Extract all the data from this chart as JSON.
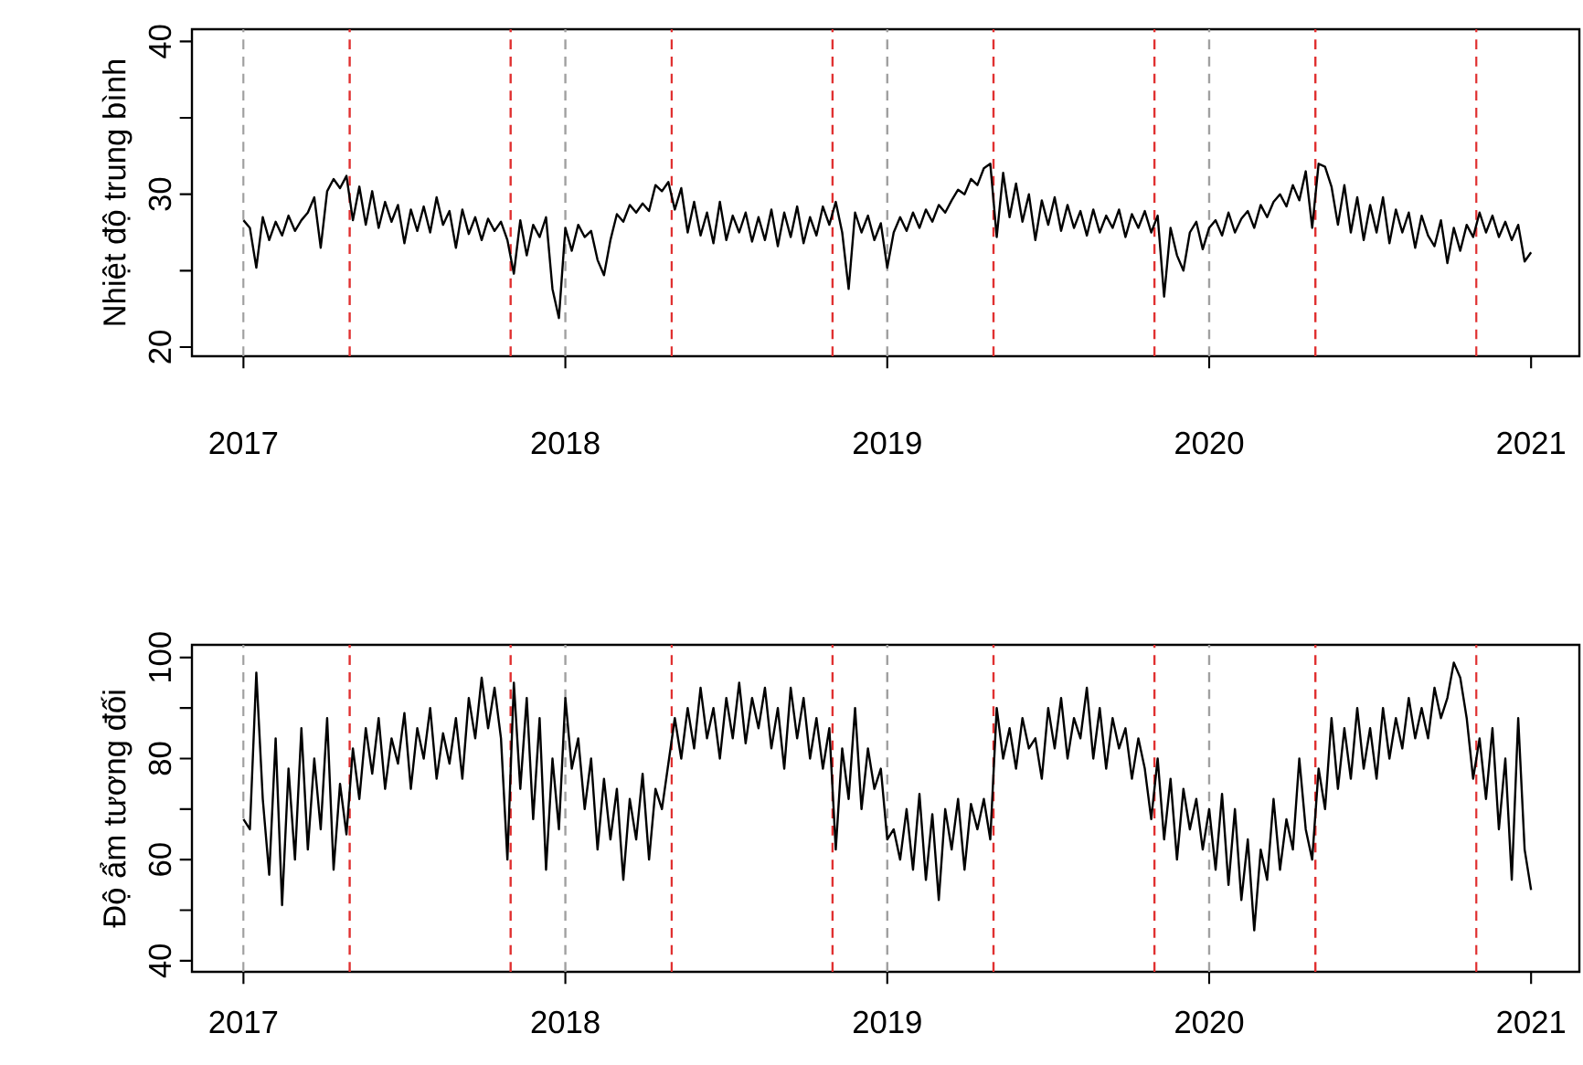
{
  "chart_data": [
    {
      "type": "line",
      "ylabel": "Nhiệt độ trung bình",
      "xlim": [
        2016.84,
        2021.15
      ],
      "ylim": [
        19.4,
        40.8
      ],
      "xticks": [
        2017,
        2018,
        2019,
        2020,
        2021
      ],
      "yticks": [
        20,
        {
          "value": 25,
          "label": null
        },
        30,
        {
          "value": 35,
          "label": null
        },
        40
      ],
      "grid": false,
      "legend": false,
      "marker": "none",
      "line_style": "solid",
      "ref_lines": [
        {
          "axis": "x",
          "value": 2017,
          "color": "#a0a0a0",
          "line_style": "dashed"
        },
        {
          "axis": "x",
          "value": 2018,
          "color": "#a0a0a0",
          "line_style": "dashed"
        },
        {
          "axis": "x",
          "value": 2019,
          "color": "#a0a0a0",
          "line_style": "dashed"
        },
        {
          "axis": "x",
          "value": 2020,
          "color": "#a0a0a0",
          "line_style": "dashed"
        },
        {
          "axis": "x",
          "value": 2017.33,
          "color": "#e03030",
          "line_style": "dashed"
        },
        {
          "axis": "x",
          "value": 2017.83,
          "color": "#e03030",
          "line_style": "dashed"
        },
        {
          "axis": "x",
          "value": 2018.33,
          "color": "#e03030",
          "line_style": "dashed"
        },
        {
          "axis": "x",
          "value": 2018.83,
          "color": "#e03030",
          "line_style": "dashed"
        },
        {
          "axis": "x",
          "value": 2019.33,
          "color": "#e03030",
          "line_style": "dashed"
        },
        {
          "axis": "x",
          "value": 2019.83,
          "color": "#e03030",
          "line_style": "dashed"
        },
        {
          "axis": "x",
          "value": 2020.33,
          "color": "#e03030",
          "line_style": "dashed"
        },
        {
          "axis": "x",
          "value": 2020.83,
          "color": "#e03030",
          "line_style": "dashed"
        }
      ],
      "series": [
        {
          "color": "#000000",
          "x": [
            2017.0,
            2017.02,
            2017.04,
            2017.06,
            2017.08,
            2017.1,
            2017.12,
            2017.14,
            2017.16,
            2017.18,
            2017.2,
            2017.22,
            2017.24,
            2017.26,
            2017.28,
            2017.3,
            2017.32,
            2017.34,
            2017.36,
            2017.38,
            2017.4,
            2017.42,
            2017.44,
            2017.46,
            2017.48,
            2017.5,
            2017.52,
            2017.54,
            2017.56,
            2017.58,
            2017.6,
            2017.62,
            2017.64,
            2017.66,
            2017.68,
            2017.7,
            2017.72,
            2017.74,
            2017.76,
            2017.78,
            2017.8,
            2017.82,
            2017.84,
            2017.86,
            2017.88,
            2017.9,
            2017.92,
            2017.94,
            2017.96,
            2017.98,
            2018.0,
            2018.02,
            2018.04,
            2018.06,
            2018.08,
            2018.1,
            2018.12,
            2018.14,
            2018.16,
            2018.18,
            2018.2,
            2018.22,
            2018.24,
            2018.26,
            2018.28,
            2018.3,
            2018.32,
            2018.34,
            2018.36,
            2018.38,
            2018.4,
            2018.42,
            2018.44,
            2018.46,
            2018.48,
            2018.5,
            2018.52,
            2018.54,
            2018.56,
            2018.58,
            2018.6,
            2018.62,
            2018.64,
            2018.66,
            2018.68,
            2018.7,
            2018.72,
            2018.74,
            2018.76,
            2018.78,
            2018.8,
            2018.82,
            2018.84,
            2018.86,
            2018.88,
            2018.9,
            2018.92,
            2018.94,
            2018.96,
            2018.98,
            2019.0,
            2019.02,
            2019.04,
            2019.06,
            2019.08,
            2019.1,
            2019.12,
            2019.14,
            2019.16,
            2019.18,
            2019.2,
            2019.22,
            2019.24,
            2019.26,
            2019.28,
            2019.3,
            2019.32,
            2019.34,
            2019.36,
            2019.38,
            2019.4,
            2019.42,
            2019.44,
            2019.46,
            2019.48,
            2019.5,
            2019.52,
            2019.54,
            2019.56,
            2019.58,
            2019.6,
            2019.62,
            2019.64,
            2019.66,
            2019.68,
            2019.7,
            2019.72,
            2019.74,
            2019.76,
            2019.78,
            2019.8,
            2019.82,
            2019.84,
            2019.86,
            2019.88,
            2019.9,
            2019.92,
            2019.94,
            2019.96,
            2019.98,
            2020.0,
            2020.02,
            2020.04,
            2020.06,
            2020.08,
            2020.1,
            2020.12,
            2020.14,
            2020.16,
            2020.18,
            2020.2,
            2020.22,
            2020.24,
            2020.26,
            2020.28,
            2020.3,
            2020.32,
            2020.34,
            2020.36,
            2020.38,
            2020.4,
            2020.42,
            2020.44,
            2020.46,
            2020.48,
            2020.5,
            2020.52,
            2020.54,
            2020.56,
            2020.58,
            2020.6,
            2020.62,
            2020.64,
            2020.66,
            2020.68,
            2020.7,
            2020.72,
            2020.74,
            2020.76,
            2020.78,
            2020.8,
            2020.82,
            2020.84,
            2020.86,
            2020.88,
            2020.9,
            2020.92,
            2020.94,
            2020.96,
            2020.98,
            2021.0
          ],
          "values": [
            28.3,
            27.8,
            25.2,
            28.5,
            27.0,
            28.2,
            27.3,
            28.6,
            27.6,
            28.3,
            28.8,
            29.8,
            26.5,
            30.2,
            31.0,
            30.4,
            31.2,
            28.3,
            30.5,
            28.0,
            30.2,
            27.8,
            29.5,
            28.2,
            29.3,
            26.8,
            29.0,
            27.6,
            29.2,
            27.5,
            29.8,
            28.0,
            28.9,
            26.5,
            29.0,
            27.4,
            28.5,
            27.0,
            28.4,
            27.6,
            28.2,
            27.0,
            24.8,
            28.3,
            26.0,
            28.0,
            27.2,
            28.5,
            23.8,
            21.9,
            27.8,
            26.3,
            28.0,
            27.2,
            27.6,
            25.7,
            24.7,
            27.0,
            28.7,
            28.2,
            29.3,
            28.8,
            29.4,
            28.9,
            30.6,
            30.2,
            30.8,
            29.0,
            30.4,
            27.5,
            29.5,
            27.3,
            28.8,
            26.8,
            29.5,
            27.0,
            28.6,
            27.5,
            28.8,
            26.9,
            28.5,
            27.0,
            29.0,
            26.6,
            28.8,
            27.2,
            29.2,
            26.8,
            28.5,
            27.3,
            29.2,
            28.0,
            29.5,
            27.5,
            23.8,
            28.8,
            27.5,
            28.6,
            27.0,
            28.1,
            25.2,
            27.5,
            28.5,
            27.6,
            28.8,
            27.8,
            29.0,
            28.2,
            29.3,
            28.8,
            29.6,
            30.3,
            30.0,
            31.0,
            30.6,
            31.7,
            32.0,
            27.2,
            31.4,
            28.5,
            30.7,
            28.2,
            30.0,
            27.0,
            29.6,
            28.0,
            29.8,
            27.6,
            29.3,
            27.8,
            28.9,
            27.3,
            29.0,
            27.5,
            28.6,
            27.8,
            29.0,
            27.2,
            28.7,
            27.8,
            28.9,
            27.5,
            28.6,
            23.3,
            27.8,
            26.0,
            25.0,
            27.5,
            28.2,
            26.4,
            27.8,
            28.3,
            27.3,
            28.8,
            27.5,
            28.4,
            28.9,
            27.8,
            29.3,
            28.5,
            29.5,
            30.0,
            29.2,
            30.6,
            29.6,
            31.5,
            27.8,
            32.0,
            31.8,
            30.5,
            28.0,
            30.6,
            27.5,
            29.8,
            27.0,
            29.3,
            27.5,
            29.8,
            26.8,
            29.0,
            27.5,
            28.8,
            26.5,
            28.6,
            27.3,
            26.6,
            28.3,
            25.5,
            27.8,
            26.3,
            28.0,
            27.2,
            28.8,
            27.5,
            28.6,
            27.2,
            28.2,
            27.0,
            28.0,
            25.6,
            26.2
          ]
        }
      ]
    },
    {
      "type": "line",
      "ylabel": "Độ ẩm tương đối",
      "xlim": [
        2016.84,
        2021.15
      ],
      "ylim": [
        37.8,
        102.5
      ],
      "xticks": [
        2017,
        2018,
        2019,
        2020,
        2021
      ],
      "yticks": [
        40,
        {
          "value": 50,
          "label": null
        },
        60,
        {
          "value": 70,
          "label": null
        },
        80,
        {
          "value": 90,
          "label": null
        },
        100
      ],
      "grid": false,
      "legend": false,
      "marker": "none",
      "line_style": "solid",
      "ref_lines": [
        {
          "axis": "x",
          "value": 2017,
          "color": "#a0a0a0",
          "line_style": "dashed"
        },
        {
          "axis": "x",
          "value": 2018,
          "color": "#a0a0a0",
          "line_style": "dashed"
        },
        {
          "axis": "x",
          "value": 2019,
          "color": "#a0a0a0",
          "line_style": "dashed"
        },
        {
          "axis": "x",
          "value": 2020,
          "color": "#a0a0a0",
          "line_style": "dashed"
        },
        {
          "axis": "x",
          "value": 2017.33,
          "color": "#e03030",
          "line_style": "dashed"
        },
        {
          "axis": "x",
          "value": 2017.83,
          "color": "#e03030",
          "line_style": "dashed"
        },
        {
          "axis": "x",
          "value": 2018.33,
          "color": "#e03030",
          "line_style": "dashed"
        },
        {
          "axis": "x",
          "value": 2018.83,
          "color": "#e03030",
          "line_style": "dashed"
        },
        {
          "axis": "x",
          "value": 2019.33,
          "color": "#e03030",
          "line_style": "dashed"
        },
        {
          "axis": "x",
          "value": 2019.83,
          "color": "#e03030",
          "line_style": "dashed"
        },
        {
          "axis": "x",
          "value": 2020.33,
          "color": "#e03030",
          "line_style": "dashed"
        },
        {
          "axis": "x",
          "value": 2020.83,
          "color": "#e03030",
          "line_style": "dashed"
        }
      ],
      "series": [
        {
          "color": "#000000",
          "x": [
            2017.0,
            2017.02,
            2017.04,
            2017.06,
            2017.08,
            2017.1,
            2017.12,
            2017.14,
            2017.16,
            2017.18,
            2017.2,
            2017.22,
            2017.24,
            2017.26,
            2017.28,
            2017.3,
            2017.32,
            2017.34,
            2017.36,
            2017.38,
            2017.4,
            2017.42,
            2017.44,
            2017.46,
            2017.48,
            2017.5,
            2017.52,
            2017.54,
            2017.56,
            2017.58,
            2017.6,
            2017.62,
            2017.64,
            2017.66,
            2017.68,
            2017.7,
            2017.72,
            2017.74,
            2017.76,
            2017.78,
            2017.8,
            2017.82,
            2017.84,
            2017.86,
            2017.88,
            2017.9,
            2017.92,
            2017.94,
            2017.96,
            2017.98,
            2018.0,
            2018.02,
            2018.04,
            2018.06,
            2018.08,
            2018.1,
            2018.12,
            2018.14,
            2018.16,
            2018.18,
            2018.2,
            2018.22,
            2018.24,
            2018.26,
            2018.28,
            2018.3,
            2018.32,
            2018.34,
            2018.36,
            2018.38,
            2018.4,
            2018.42,
            2018.44,
            2018.46,
            2018.48,
            2018.5,
            2018.52,
            2018.54,
            2018.56,
            2018.58,
            2018.6,
            2018.62,
            2018.64,
            2018.66,
            2018.68,
            2018.7,
            2018.72,
            2018.74,
            2018.76,
            2018.78,
            2018.8,
            2018.82,
            2018.84,
            2018.86,
            2018.88,
            2018.9,
            2018.92,
            2018.94,
            2018.96,
            2018.98,
            2019.0,
            2019.02,
            2019.04,
            2019.06,
            2019.08,
            2019.1,
            2019.12,
            2019.14,
            2019.16,
            2019.18,
            2019.2,
            2019.22,
            2019.24,
            2019.26,
            2019.28,
            2019.3,
            2019.32,
            2019.34,
            2019.36,
            2019.38,
            2019.4,
            2019.42,
            2019.44,
            2019.46,
            2019.48,
            2019.5,
            2019.52,
            2019.54,
            2019.56,
            2019.58,
            2019.6,
            2019.62,
            2019.64,
            2019.66,
            2019.68,
            2019.7,
            2019.72,
            2019.74,
            2019.76,
            2019.78,
            2019.8,
            2019.82,
            2019.84,
            2019.86,
            2019.88,
            2019.9,
            2019.92,
            2019.94,
            2019.96,
            2019.98,
            2020.0,
            2020.02,
            2020.04,
            2020.06,
            2020.08,
            2020.1,
            2020.12,
            2020.14,
            2020.16,
            2020.18,
            2020.2,
            2020.22,
            2020.24,
            2020.26,
            2020.28,
            2020.3,
            2020.32,
            2020.34,
            2020.36,
            2020.38,
            2020.4,
            2020.42,
            2020.44,
            2020.46,
            2020.48,
            2020.5,
            2020.52,
            2020.54,
            2020.56,
            2020.58,
            2020.6,
            2020.62,
            2020.64,
            2020.66,
            2020.68,
            2020.7,
            2020.72,
            2020.74,
            2020.76,
            2020.78,
            2020.8,
            2020.82,
            2020.84,
            2020.86,
            2020.88,
            2020.9,
            2020.92,
            2020.94,
            2020.96,
            2020.98,
            2021.0
          ],
          "values": [
            68,
            66,
            97,
            72,
            57,
            84,
            51,
            78,
            60,
            86,
            62,
            80,
            66,
            88,
            58,
            75,
            65,
            82,
            72,
            86,
            77,
            88,
            74,
            84,
            79,
            89,
            74,
            86,
            80,
            90,
            76,
            85,
            79,
            88,
            76,
            92,
            84,
            96,
            86,
            94,
            84,
            60,
            95,
            74,
            92,
            68,
            88,
            58,
            80,
            66,
            92,
            78,
            84,
            70,
            80,
            62,
            76,
            64,
            74,
            56,
            72,
            64,
            77,
            60,
            74,
            70,
            79,
            88,
            80,
            90,
            82,
            94,
            84,
            90,
            80,
            92,
            84,
            95,
            83,
            92,
            86,
            94,
            82,
            90,
            78,
            94,
            84,
            92,
            80,
            88,
            78,
            86,
            62,
            82,
            72,
            90,
            70,
            82,
            74,
            78,
            64,
            66,
            60,
            70,
            58,
            73,
            56,
            69,
            52,
            70,
            62,
            72,
            58,
            71,
            66,
            72,
            64,
            90,
            80,
            86,
            78,
            88,
            82,
            84,
            76,
            90,
            82,
            92,
            80,
            88,
            84,
            94,
            80,
            90,
            78,
            88,
            82,
            86,
            76,
            84,
            78,
            68,
            80,
            64,
            76,
            60,
            74,
            66,
            72,
            62,
            70,
            58,
            73,
            55,
            70,
            52,
            64,
            46,
            62,
            56,
            72,
            58,
            68,
            62,
            80,
            66,
            60,
            78,
            70,
            88,
            74,
            86,
            76,
            90,
            78,
            86,
            76,
            90,
            80,
            88,
            82,
            92,
            84,
            90,
            84,
            94,
            88,
            92,
            99,
            96,
            88,
            76,
            84,
            72,
            86,
            66,
            80,
            56,
            88,
            62,
            54
          ]
        }
      ]
    }
  ]
}
